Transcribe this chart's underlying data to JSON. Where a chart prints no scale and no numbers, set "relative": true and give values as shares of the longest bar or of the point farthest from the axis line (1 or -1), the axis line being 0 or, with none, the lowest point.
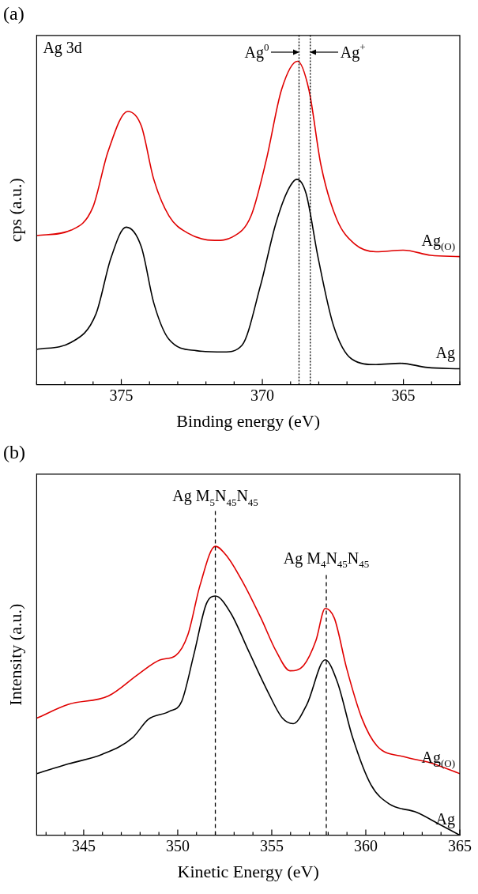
{
  "chart_data": [
    {
      "type": "line",
      "title": "(a)",
      "xlabel": "Binding energy (eV)",
      "ylabel": "cps (a.u.)",
      "relative": true,
      "grid": false,
      "marker": "none",
      "legend": false,
      "xlim": [
        378,
        363
      ],
      "xticks": [
        {
          "value": 378,
          "label": null
        },
        {
          "value": 377,
          "label": null
        },
        {
          "value": 376,
          "label": null
        },
        375,
        {
          "value": 374,
          "label": null
        },
        {
          "value": 373,
          "label": null
        },
        {
          "value": 372,
          "label": null
        },
        {
          "value": 371,
          "label": null
        },
        370,
        {
          "value": 369,
          "label": null
        },
        {
          "value": 368,
          "label": null
        },
        {
          "value": 367,
          "label": null
        },
        {
          "value": 366,
          "label": null
        },
        365,
        {
          "value": 364,
          "label": null
        },
        {
          "value": 363,
          "label": null
        }
      ],
      "series": [
        {
          "name": "Ag$_{(O)}$",
          "color": "#e00000",
          "x": [
            378.0,
            376.77,
            376.01,
            375.47,
            374.77,
            374.29,
            373.85,
            373.31,
            372.67,
            371.69,
            371.05,
            370.4,
            369.86,
            369.32,
            368.75,
            368.35,
            367.92,
            367.37,
            366.73,
            365.97,
            365.0,
            364.03,
            363.0
          ],
          "values": [
            0.461,
            0.478,
            0.548,
            0.721,
            0.845,
            0.8,
            0.635,
            0.522,
            0.47,
            0.446,
            0.457,
            0.522,
            0.695,
            0.912,
            1.0,
            0.912,
            0.678,
            0.513,
            0.435,
            0.411,
            0.416,
            0.4,
            0.396
          ]
        },
        {
          "name": "Ag",
          "color": "#000000",
          "x": [
            378.0,
            376.77,
            375.9,
            375.37,
            374.83,
            374.29,
            373.85,
            373.31,
            372.34,
            371.37,
            370.72,
            370.07,
            369.53,
            369.1,
            368.78,
            368.45,
            368.02,
            367.48,
            366.83,
            365.97,
            365.11,
            364.14,
            363.0
          ],
          "values": [
            0.109,
            0.131,
            0.218,
            0.391,
            0.487,
            0.426,
            0.253,
            0.14,
            0.105,
            0.101,
            0.122,
            0.305,
            0.496,
            0.6,
            0.635,
            0.591,
            0.391,
            0.183,
            0.079,
            0.062,
            0.066,
            0.053,
            0.049
          ]
        }
      ],
      "ref_lines": [
        {
          "axis": "x",
          "value": 368.7,
          "color": "#000000",
          "line_style": "dotted",
          "label": "Ag$^{0}$"
        },
        {
          "axis": "x",
          "value": 368.3,
          "color": "#000000",
          "line_style": "dotted",
          "label": "Ag$^{+}$"
        }
      ],
      "annotations": [
        "Ag 3d"
      ]
    },
    {
      "type": "line",
      "title": "(b)",
      "xlabel": "Kinetic Energy (eV)",
      "ylabel": "Intensity (a.u.)",
      "relative": true,
      "grid": false,
      "marker": "none",
      "legend": false,
      "xlim": [
        342.5,
        365
      ],
      "xticks": [
        {
          "value": 343,
          "label": null
        },
        {
          "value": 344,
          "label": null
        },
        345,
        {
          "value": 346,
          "label": null
        },
        {
          "value": 347,
          "label": null
        },
        {
          "value": 348,
          "label": null
        },
        {
          "value": 349,
          "label": null
        },
        350,
        {
          "value": 351,
          "label": null
        },
        {
          "value": 352,
          "label": null
        },
        {
          "value": 353,
          "label": null
        },
        {
          "value": 354,
          "label": null
        },
        355,
        {
          "value": 356,
          "label": null
        },
        {
          "value": 357,
          "label": null
        },
        {
          "value": 358,
          "label": null
        },
        {
          "value": 359,
          "label": null
        },
        360,
        {
          "value": 361,
          "label": null
        },
        {
          "value": 362,
          "label": null
        },
        {
          "value": 363,
          "label": null
        },
        {
          "value": 364,
          "label": null
        },
        365
      ],
      "series": [
        {
          "name": "Ag$_{(O)}$",
          "color": "#e00000",
          "x": [
            342.5,
            344.2,
            346.31,
            347.94,
            349.07,
            349.89,
            350.54,
            351.19,
            352.0,
            352.65,
            353.46,
            354.43,
            355.24,
            355.97,
            356.7,
            357.35,
            357.84,
            358.33,
            358.98,
            359.79,
            360.6,
            362.06,
            363.36,
            365.0
          ],
          "values": [
            0.405,
            0.453,
            0.482,
            0.559,
            0.607,
            0.622,
            0.694,
            0.866,
            1.0,
            0.963,
            0.876,
            0.751,
            0.636,
            0.569,
            0.588,
            0.674,
            0.785,
            0.751,
            0.578,
            0.405,
            0.309,
            0.271,
            0.252,
            0.213
          ]
        },
        {
          "name": "Ag",
          "color": "#000000",
          "x": [
            342.5,
            344.2,
            345.99,
            347.61,
            348.43,
            349.56,
            350.21,
            350.86,
            351.51,
            352.0,
            352.81,
            353.78,
            354.76,
            355.57,
            356.14,
            356.87,
            357.84,
            358.49,
            359.3,
            360.27,
            361.25,
            362.71,
            363.85,
            365.0
          ],
          "values": [
            0.213,
            0.247,
            0.28,
            0.338,
            0.401,
            0.429,
            0.463,
            0.626,
            0.799,
            0.828,
            0.77,
            0.636,
            0.501,
            0.405,
            0.386,
            0.453,
            0.607,
            0.53,
            0.338,
            0.175,
            0.108,
            0.079,
            0.04,
            0.0
          ]
        }
      ],
      "ref_lines": [
        {
          "axis": "x",
          "value": 352.0,
          "color": "#000000",
          "line_style": "dashed",
          "label": "Ag M$_{5}$N$_{45}$N$_{45}$"
        },
        {
          "axis": "x",
          "value": 357.9,
          "color": "#000000",
          "line_style": "dashed",
          "label": "Ag M$_{4}$N$_{45}$N$_{45}$"
        }
      ]
    }
  ]
}
